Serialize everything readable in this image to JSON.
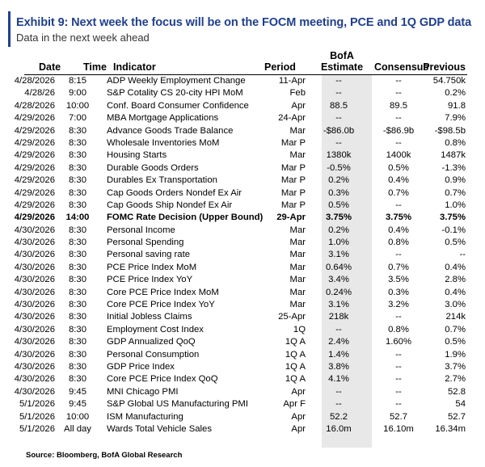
{
  "exhibit": {
    "title": "Exhibit 9: Next week the focus will be on the FOCM meeting, PCE and 1Q GDP data",
    "subtitle": "Data in the next week ahead"
  },
  "table": {
    "headers": {
      "date": "Date",
      "time": "Time",
      "indicator": "Indicator",
      "period": "Period",
      "estimate_line1": "BofA",
      "estimate_line2": "Estimate",
      "consensus": "Consensus",
      "previous": "Previous"
    },
    "rows": [
      {
        "date": "4/28/2026",
        "time": "8:15",
        "indicator": "ADP Weekly Employment Change",
        "period": "11-Apr",
        "estimate": "--",
        "consensus": "--",
        "previous": "54.750k",
        "bold": false
      },
      {
        "date": "4/28/26",
        "time": "9:00",
        "indicator": "S&P Cotality CS 20-city HPI MoM",
        "period": "Feb",
        "estimate": "--",
        "consensus": "--",
        "previous": "0.2%",
        "bold": false
      },
      {
        "date": "4/28/2026",
        "time": "10:00",
        "indicator": "Conf. Board Consumer Confidence",
        "period": "Apr",
        "estimate": "88.5",
        "consensus": "89.5",
        "previous": "91.8",
        "bold": false
      },
      {
        "date": "4/29/2026",
        "time": "7:00",
        "indicator": "MBA Mortgage Applications",
        "period": "24-Apr",
        "estimate": "--",
        "consensus": "--",
        "previous": "7.9%",
        "bold": false
      },
      {
        "date": "4/29/2026",
        "time": "8:30",
        "indicator": "Advance Goods Trade Balance",
        "period": "Mar",
        "estimate": "-$86.0b",
        "consensus": "-$86.9b",
        "previous": "-$98.5b",
        "bold": false
      },
      {
        "date": "4/29/2026",
        "time": "8:30",
        "indicator": "Wholesale Inventories MoM",
        "period": "Mar P",
        "estimate": "--",
        "consensus": "--",
        "previous": "0.8%",
        "bold": false
      },
      {
        "date": "4/29/2026",
        "time": "8:30",
        "indicator": "Housing Starts",
        "period": "Mar",
        "estimate": "1380k",
        "consensus": "1400k",
        "previous": "1487k",
        "bold": false
      },
      {
        "date": "4/29/2026",
        "time": "8:30",
        "indicator": "Durable Goods Orders",
        "period": "Mar P",
        "estimate": "-0.5%",
        "consensus": "0.5%",
        "previous": "-1.3%",
        "bold": false
      },
      {
        "date": "4/29/2026",
        "time": "8:30",
        "indicator": "Durables Ex Transportation",
        "period": "Mar P",
        "estimate": "0.2%",
        "consensus": "0.4%",
        "previous": "0.9%",
        "bold": false
      },
      {
        "date": "4/29/2026",
        "time": "8:30",
        "indicator": "Cap Goods Orders Nondef Ex Air",
        "period": "Mar P",
        "estimate": "0.3%",
        "consensus": "0.7%",
        "previous": "0.7%",
        "bold": false
      },
      {
        "date": "4/29/2026",
        "time": "8:30",
        "indicator": "Cap Goods Ship Nondef Ex Air",
        "period": "Mar P",
        "estimate": "0.5%",
        "consensus": "--",
        "previous": "1.0%",
        "bold": false
      },
      {
        "date": "4/29/2026",
        "time": "14:00",
        "indicator": "FOMC Rate Decision (Upper Bound)",
        "period": "29-Apr",
        "estimate": "3.75%",
        "consensus": "3.75%",
        "previous": "3.75%",
        "bold": true
      },
      {
        "date": "4/30/2026",
        "time": "8:30",
        "indicator": "Personal Income",
        "period": "Mar",
        "estimate": "0.2%",
        "consensus": "0.4%",
        "previous": "-0.1%",
        "bold": false
      },
      {
        "date": "4/30/2026",
        "time": "8:30",
        "indicator": "Personal Spending",
        "period": "Mar",
        "estimate": "1.0%",
        "consensus": "0.8%",
        "previous": "0.5%",
        "bold": false
      },
      {
        "date": "4/30/2026",
        "time": "8:30",
        "indicator": "Personal saving rate",
        "period": "Mar",
        "estimate": "3.1%",
        "consensus": "--",
        "previous": "--",
        "bold": false
      },
      {
        "date": "4/30/2026",
        "time": "8:30",
        "indicator": "PCE Price Index MoM",
        "period": "Mar",
        "estimate": "0.64%",
        "consensus": "0.7%",
        "previous": "0.4%",
        "bold": false
      },
      {
        "date": "4/30/2026",
        "time": "8:30",
        "indicator": "PCE Price Index YoY",
        "period": "Mar",
        "estimate": "3.4%",
        "consensus": "3.5%",
        "previous": "2.8%",
        "bold": false
      },
      {
        "date": "4/30/2026",
        "time": "8:30",
        "indicator": "Core PCE Price Index MoM",
        "period": "Mar",
        "estimate": "0.24%",
        "consensus": "0.3%",
        "previous": "0.4%",
        "bold": false
      },
      {
        "date": "4/30/2026",
        "time": "8:30",
        "indicator": "Core PCE Price Index YoY",
        "period": "Mar",
        "estimate": "3.1%",
        "consensus": "3.2%",
        "previous": "3.0%",
        "bold": false
      },
      {
        "date": "4/30/2026",
        "time": "8:30",
        "indicator": "Initial Jobless Claims",
        "period": "25-Apr",
        "estimate": "218k",
        "consensus": "--",
        "previous": "214k",
        "bold": false
      },
      {
        "date": "4/30/2026",
        "time": "8:30",
        "indicator": "Employment Cost Index",
        "period": "1Q",
        "estimate": "--",
        "consensus": "0.8%",
        "previous": "0.7%",
        "bold": false
      },
      {
        "date": "4/30/2026",
        "time": "8:30",
        "indicator": "GDP Annualized QoQ",
        "period": "1Q A",
        "estimate": "2.4%",
        "consensus": "1.60%",
        "previous": "0.5%",
        "bold": false
      },
      {
        "date": "4/30/2026",
        "time": "8:30",
        "indicator": "Personal Consumption",
        "period": "1Q A",
        "estimate": "1.4%",
        "consensus": "--",
        "previous": "1.9%",
        "bold": false
      },
      {
        "date": "4/30/2026",
        "time": "8:30",
        "indicator": "GDP Price Index",
        "period": "1Q A",
        "estimate": "3.8%",
        "consensus": "--",
        "previous": "3.7%",
        "bold": false
      },
      {
        "date": "4/30/2026",
        "time": "8:30",
        "indicator": "Core PCE Price Index QoQ",
        "period": "1Q A",
        "estimate": "4.1%",
        "consensus": "--",
        "previous": "2.7%",
        "bold": false
      },
      {
        "date": "4/30/2026",
        "time": "9:45",
        "indicator": "MNI Chicago PMI",
        "period": "Apr",
        "estimate": "--",
        "consensus": "--",
        "previous": "52.8",
        "bold": false
      },
      {
        "date": "5/1/2026",
        "time": "9:45",
        "indicator": "S&P Global US Manufacturing PMI",
        "period": "Apr F",
        "estimate": "--",
        "consensus": "--",
        "previous": "54",
        "bold": false
      },
      {
        "date": "5/1/2026",
        "time": "10:00",
        "indicator": "ISM Manufacturing",
        "period": "Apr",
        "estimate": "52.2",
        "consensus": "52.7",
        "previous": "52.7",
        "bold": false
      },
      {
        "date": "5/1/2026",
        "time": "All day",
        "indicator": "Wards Total Vehicle Sales",
        "period": "Apr",
        "estimate": "16.0m",
        "consensus": "16.10m",
        "previous": "16.34m",
        "bold": false
      }
    ]
  },
  "source": "Source: Bloomberg, BofA Global Research"
}
